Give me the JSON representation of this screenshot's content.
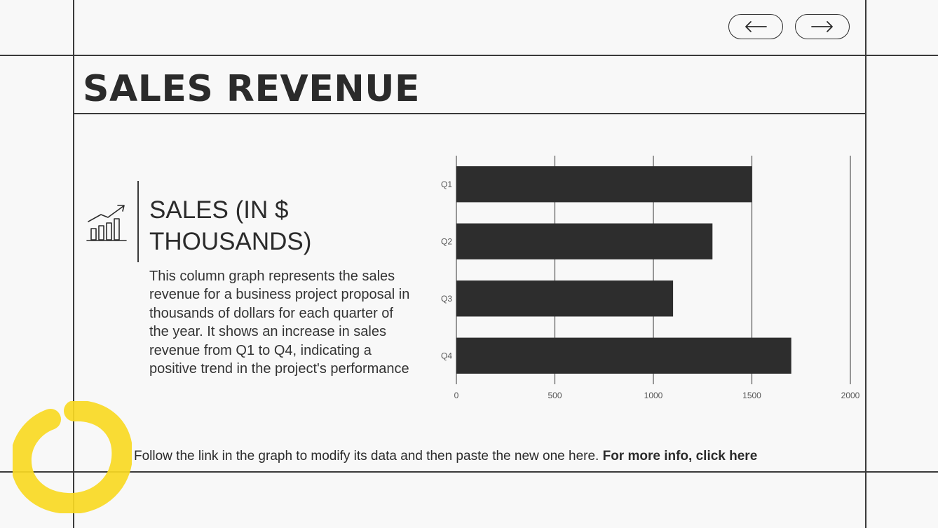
{
  "nav": {
    "prev_label": "previous slide",
    "next_label": "next slide"
  },
  "slide": {
    "title": "SALES REVENUE",
    "subtitle": "SALES (IN $ THOUSANDS)",
    "description": "This column graph represents the sales revenue for a business project proposal in thousands of dollars for each quarter of the year. It shows an increase in sales revenue from Q1 to Q4, indicating a positive trend in the project's performance",
    "footer_text": "Follow the link in the graph to modify its data and then paste the new one here.",
    "footer_link": "For more info, click here"
  },
  "colors": {
    "bar": "#2d2d2d",
    "accent": "#f9d923",
    "line": "#3a3a3a",
    "background": "#f8f8f8"
  },
  "chart_data": {
    "type": "bar",
    "orientation": "horizontal",
    "categories": [
      "Q1",
      "Q2",
      "Q3",
      "Q4"
    ],
    "values": [
      1500,
      1300,
      1100,
      1700
    ],
    "xlim": [
      0,
      2000
    ],
    "xticks": [
      0,
      500,
      1000,
      1500,
      2000
    ],
    "grid": true,
    "title": "",
    "xlabel": "",
    "ylabel": ""
  }
}
